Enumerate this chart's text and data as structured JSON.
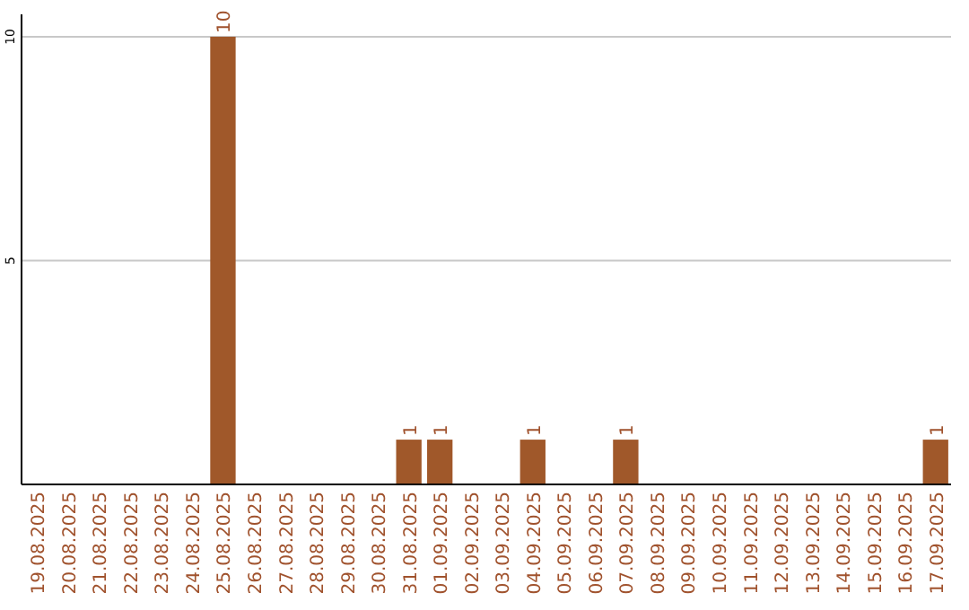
{
  "chart_data": {
    "type": "bar",
    "categories": [
      "19.08.2025",
      "20.08.2025",
      "21.08.2025",
      "22.08.2025",
      "23.08.2025",
      "24.08.2025",
      "25.08.2025",
      "26.08.2025",
      "27.08.2025",
      "28.08.2025",
      "29.08.2025",
      "30.08.2025",
      "31.08.2025",
      "01.09.2025",
      "02.09.2025",
      "03.09.2025",
      "04.09.2025",
      "05.09.2025",
      "06.09.2025",
      "07.09.2025",
      "08.09.2025",
      "09.09.2025",
      "10.09.2025",
      "11.09.2025",
      "12.09.2025",
      "13.09.2025",
      "14.09.2025",
      "15.09.2025",
      "16.09.2025",
      "17.09.2025"
    ],
    "values": [
      0,
      0,
      0,
      0,
      0,
      0,
      10,
      0,
      0,
      0,
      0,
      0,
      1,
      1,
      0,
      0,
      1,
      0,
      0,
      1,
      0,
      0,
      0,
      0,
      0,
      0,
      0,
      0,
      0,
      1
    ],
    "value_labels": [
      null,
      null,
      null,
      null,
      null,
      null,
      "10",
      null,
      null,
      null,
      null,
      null,
      "1",
      "1",
      null,
      null,
      "1",
      null,
      null,
      "1",
      null,
      null,
      null,
      null,
      null,
      null,
      null,
      null,
      null,
      "1"
    ],
    "color": "#a0582a",
    "ylim": [
      0,
      10.5
    ],
    "yticks": [
      {
        "value": 0,
        "label": null
      },
      5,
      10
    ],
    "grid": "y"
  }
}
